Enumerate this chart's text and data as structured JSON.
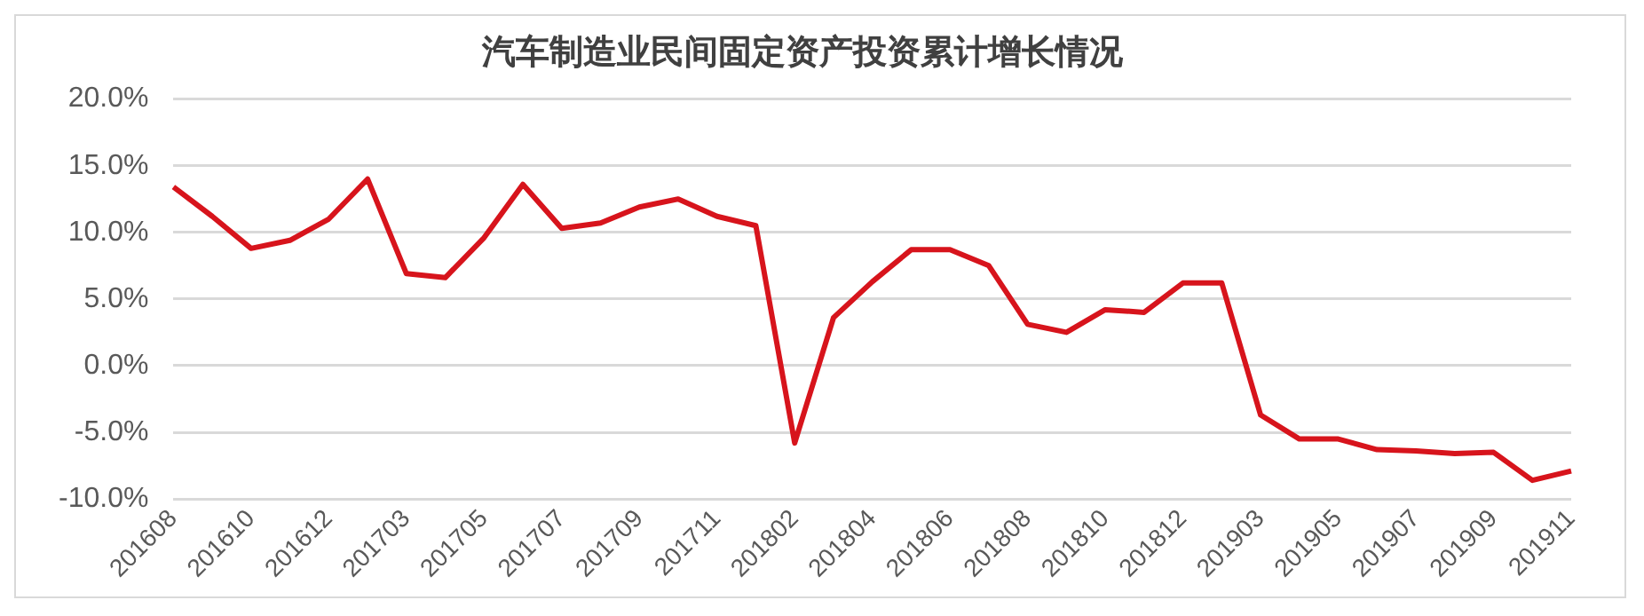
{
  "chart_data": {
    "type": "line",
    "title": "汽车制造业民间固定资产投资累计增长情况",
    "categories": [
      "201608",
      null,
      "201610",
      null,
      "201612",
      null,
      "201703",
      null,
      "201705",
      null,
      "201707",
      null,
      "201709",
      null,
      "201711",
      null,
      "201802",
      null,
      "201804",
      null,
      "201806",
      null,
      "201808",
      null,
      "201810",
      null,
      "201812",
      null,
      "201903",
      null,
      "201905",
      null,
      "201907",
      null,
      "201909",
      null,
      "201911"
    ],
    "series": [
      {
        "color": "#d7141c",
        "values": [
          13.4,
          11.2,
          8.8,
          9.4,
          11.0,
          14.0,
          6.9,
          6.6,
          9.6,
          13.6,
          10.3,
          10.7,
          11.9,
          12.5,
          11.2,
          10.5,
          -5.8,
          3.6,
          6.3,
          8.7,
          8.7,
          7.5,
          3.1,
          2.5,
          4.2,
          4.0,
          6.2,
          6.2,
          -3.7,
          -5.5,
          -5.5,
          -6.3,
          -6.4,
          -6.6,
          -6.5,
          -8.6,
          -7.9
        ]
      }
    ],
    "ylim": [
      -10,
      20
    ],
    "yticks": [
      {
        "value": -10,
        "label": "-10.0%"
      },
      {
        "value": -5,
        "label": "-5.0%"
      },
      {
        "value": 0,
        "label": "0.0%"
      },
      {
        "value": 5,
        "label": "5.0%"
      },
      {
        "value": 10,
        "label": "10.0%"
      },
      {
        "value": 15,
        "label": "15.0%"
      },
      {
        "value": 20,
        "label": "20.0%"
      }
    ],
    "grid": "y",
    "legend": false,
    "marker": "none",
    "line_style": "solid"
  }
}
